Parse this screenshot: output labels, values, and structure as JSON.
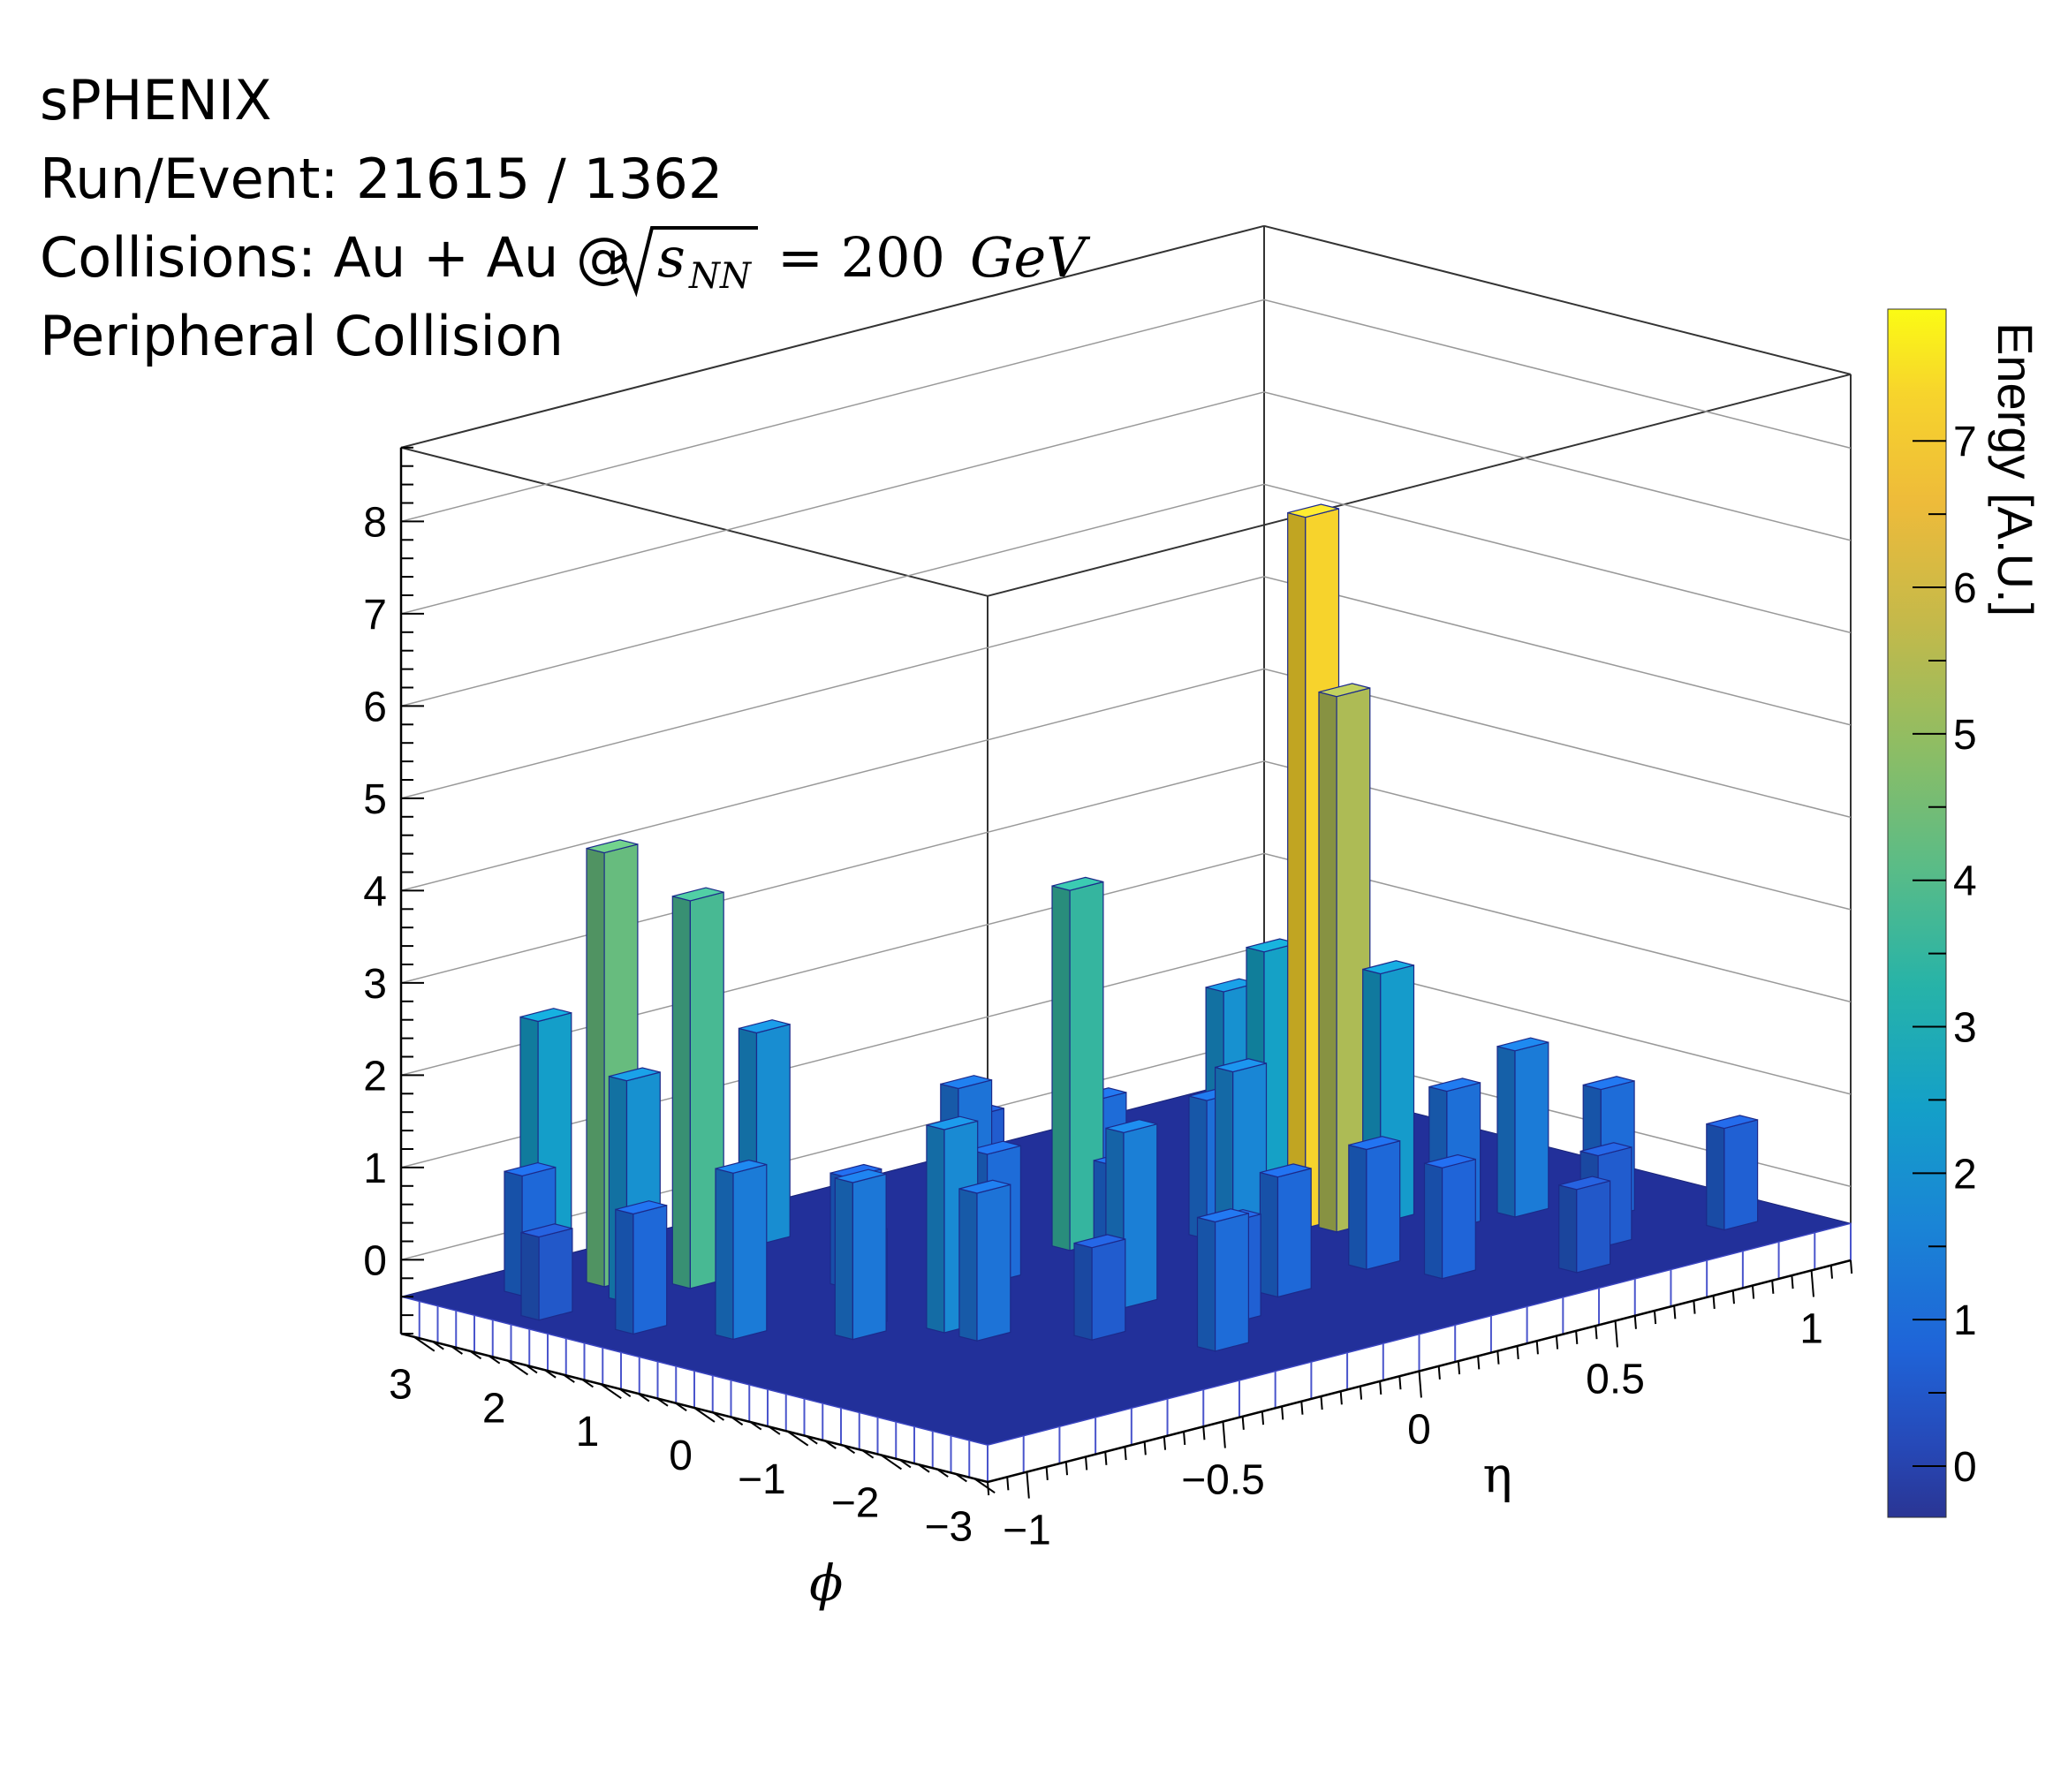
{
  "info": {
    "line1": "sPHENIX",
    "line2": "Run/Event: 21615 / 1362",
    "line3_prefix": "Collisions: Au + Au @",
    "line3_symbol": "s",
    "line3_sub": "NN",
    "line3_value": "= 200",
    "line3_unit": "GeV",
    "line4": "Peripheral Collision"
  },
  "chart_data": {
    "type": "bar3d",
    "title": "",
    "x_axis": {
      "label": "η",
      "range": [
        -1.1,
        1.1
      ],
      "ticks": [
        -1,
        -0.5,
        0,
        0.5,
        1
      ],
      "tick_labels": [
        "−1",
        "−0.5",
        "0",
        "0.5",
        "1"
      ]
    },
    "y_axis": {
      "label": "ϕ",
      "range": [
        -3.14,
        3.14
      ],
      "ticks": [
        -3,
        -2,
        -1,
        0,
        1,
        2,
        3
      ],
      "tick_labels": [
        "−3",
        "−2",
        "−1",
        "0",
        "1",
        "2",
        "3"
      ]
    },
    "z_axis": {
      "label": "",
      "range": [
        -0.8,
        8.8
      ],
      "ticks": [
        0,
        1,
        2,
        3,
        4,
        5,
        6,
        7,
        8
      ],
      "tick_labels": [
        "0",
        "1",
        "2",
        "3",
        "4",
        "5",
        "6",
        "7",
        "8"
      ]
    },
    "colorbar": {
      "label": "Energy [A.U.]",
      "range": [
        -0.35,
        7.9
      ],
      "ticks": [
        0,
        1,
        2,
        3,
        4,
        5,
        6,
        7
      ],
      "tick_labels": [
        "0",
        "1",
        "2",
        "3",
        "4",
        "5",
        "6",
        "7"
      ],
      "colormap": "parula"
    },
    "grid": true,
    "towers": [
      {
        "eta": 0.43,
        "phi": -0.2,
        "energy": 7.3
      },
      {
        "eta": 0.45,
        "phi": -0.45,
        "energy": 5.4
      },
      {
        "eta": -0.75,
        "phi": 2.35,
        "energy": 4.3
      },
      {
        "eta": -0.65,
        "phi": 1.85,
        "energy": 3.8
      },
      {
        "eta": 0.02,
        "phi": 0.6,
        "energy": 3.5
      },
      {
        "eta": -0.8,
        "phi": 2.85,
        "energy": 2.4
      },
      {
        "eta": 0.42,
        "phi": 0.2,
        "energy": 2.5
      },
      {
        "eta": 0.55,
        "phi": -0.5,
        "energy": 2.3
      },
      {
        "eta": -0.8,
        "phi": 1.9,
        "energy": 2.0
      },
      {
        "eta": 0.4,
        "phi": 0.55,
        "energy": 2.0
      },
      {
        "eta": -0.55,
        "phi": -0.45,
        "energy": 1.8
      },
      {
        "eta": -0.2,
        "phi": -0.9,
        "energy": 1.5
      },
      {
        "eta": 0.15,
        "phi": -0.6,
        "energy": 1.7
      },
      {
        "eta": -0.35,
        "phi": 2.4,
        "energy": 1.9
      },
      {
        "eta": -0.05,
        "phi": 1.5,
        "energy": 1.2
      },
      {
        "eta": -0.85,
        "phi": 0.55,
        "energy": 1.4
      },
      {
        "eta": -0.7,
        "phi": -0.1,
        "energy": 1.3
      },
      {
        "eta": 0.75,
        "phi": -1.1,
        "energy": 1.4
      },
      {
        "eta": 0.85,
        "phi": -1.6,
        "energy": 1.0
      },
      {
        "eta": 0.6,
        "phi": -1.0,
        "energy": 1.1
      },
      {
        "eta": -0.55,
        "phi": -0.8,
        "energy": 1.2
      },
      {
        "eta": -0.25,
        "phi": 0.35,
        "energy": 1.0
      },
      {
        "eta": 0.3,
        "phi": -1.4,
        "energy": 0.9
      },
      {
        "eta": 0.15,
        "phi": 0.9,
        "energy": 1.0
      },
      {
        "eta": -0.3,
        "phi": -2.3,
        "energy": 1.0
      },
      {
        "eta": -0.9,
        "phi": 2.6,
        "energy": 0.9
      },
      {
        "eta": -0.95,
        "phi": 1.2,
        "energy": 0.9
      },
      {
        "eta": 0.05,
        "phi": -1.5,
        "energy": 0.9
      },
      {
        "eta": 0.25,
        "phi": 0.1,
        "energy": 1.1
      },
      {
        "eta": -0.1,
        "phi": -0.35,
        "energy": 0.9
      },
      {
        "eta": 0.7,
        "phi": -2.2,
        "energy": 0.6
      },
      {
        "eta": 0.95,
        "phi": -2.5,
        "energy": 0.7
      },
      {
        "eta": -0.45,
        "phi": 1.0,
        "energy": 0.8
      },
      {
        "eta": -0.15,
        "phi": -1.8,
        "energy": 0.7
      },
      {
        "eta": 0.35,
        "phi": -2.0,
        "energy": 0.8
      },
      {
        "eta": 0.55,
        "phi": -2.6,
        "energy": 0.5
      },
      {
        "eta": -0.65,
        "phi": 0.1,
        "energy": 0.6
      },
      {
        "eta": -1.0,
        "phi": 2.0,
        "energy": 0.5
      },
      {
        "eta": 0.1,
        "phi": 2.0,
        "energy": 0.6
      },
      {
        "eta": -0.4,
        "phi": -1.4,
        "energy": 0.6
      }
    ]
  }
}
